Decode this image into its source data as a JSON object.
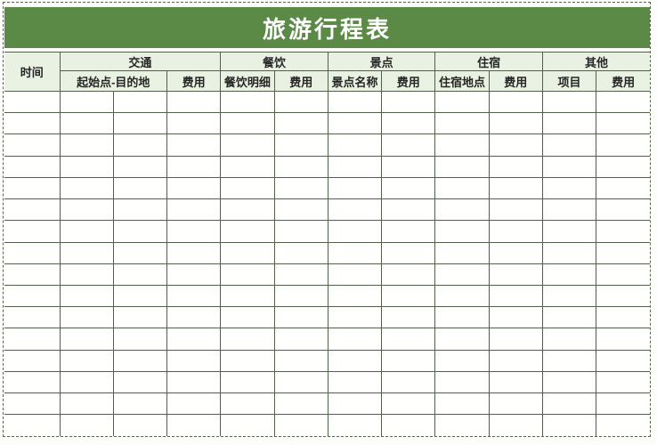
{
  "title": "旅游行程表",
  "table": {
    "time_label": "时间",
    "groups": [
      {
        "label": "交通",
        "sub": [
          "起始点-目的地",
          "费用"
        ]
      },
      {
        "label": "餐饮",
        "sub": [
          "餐饮明细",
          "费用"
        ]
      },
      {
        "label": "景点",
        "sub": [
          "景点名称",
          "费用"
        ]
      },
      {
        "label": "住宿",
        "sub": [
          "住宿地点",
          "费用"
        ]
      },
      {
        "label": "其他",
        "sub": [
          "项目",
          "费用"
        ]
      }
    ],
    "body_rows": 16,
    "body_cols": 12,
    "cells_empty": true
  },
  "colors": {
    "banner_green": "#5a8a45",
    "header_fill": "#e9f1e2",
    "grid_line": "#535e4c",
    "frame_dash": "#55664d",
    "title_text": "#ffffff",
    "header_text": "#262626",
    "page_bg": "#fdfdfb",
    "cell_bg": "#fffffd"
  }
}
